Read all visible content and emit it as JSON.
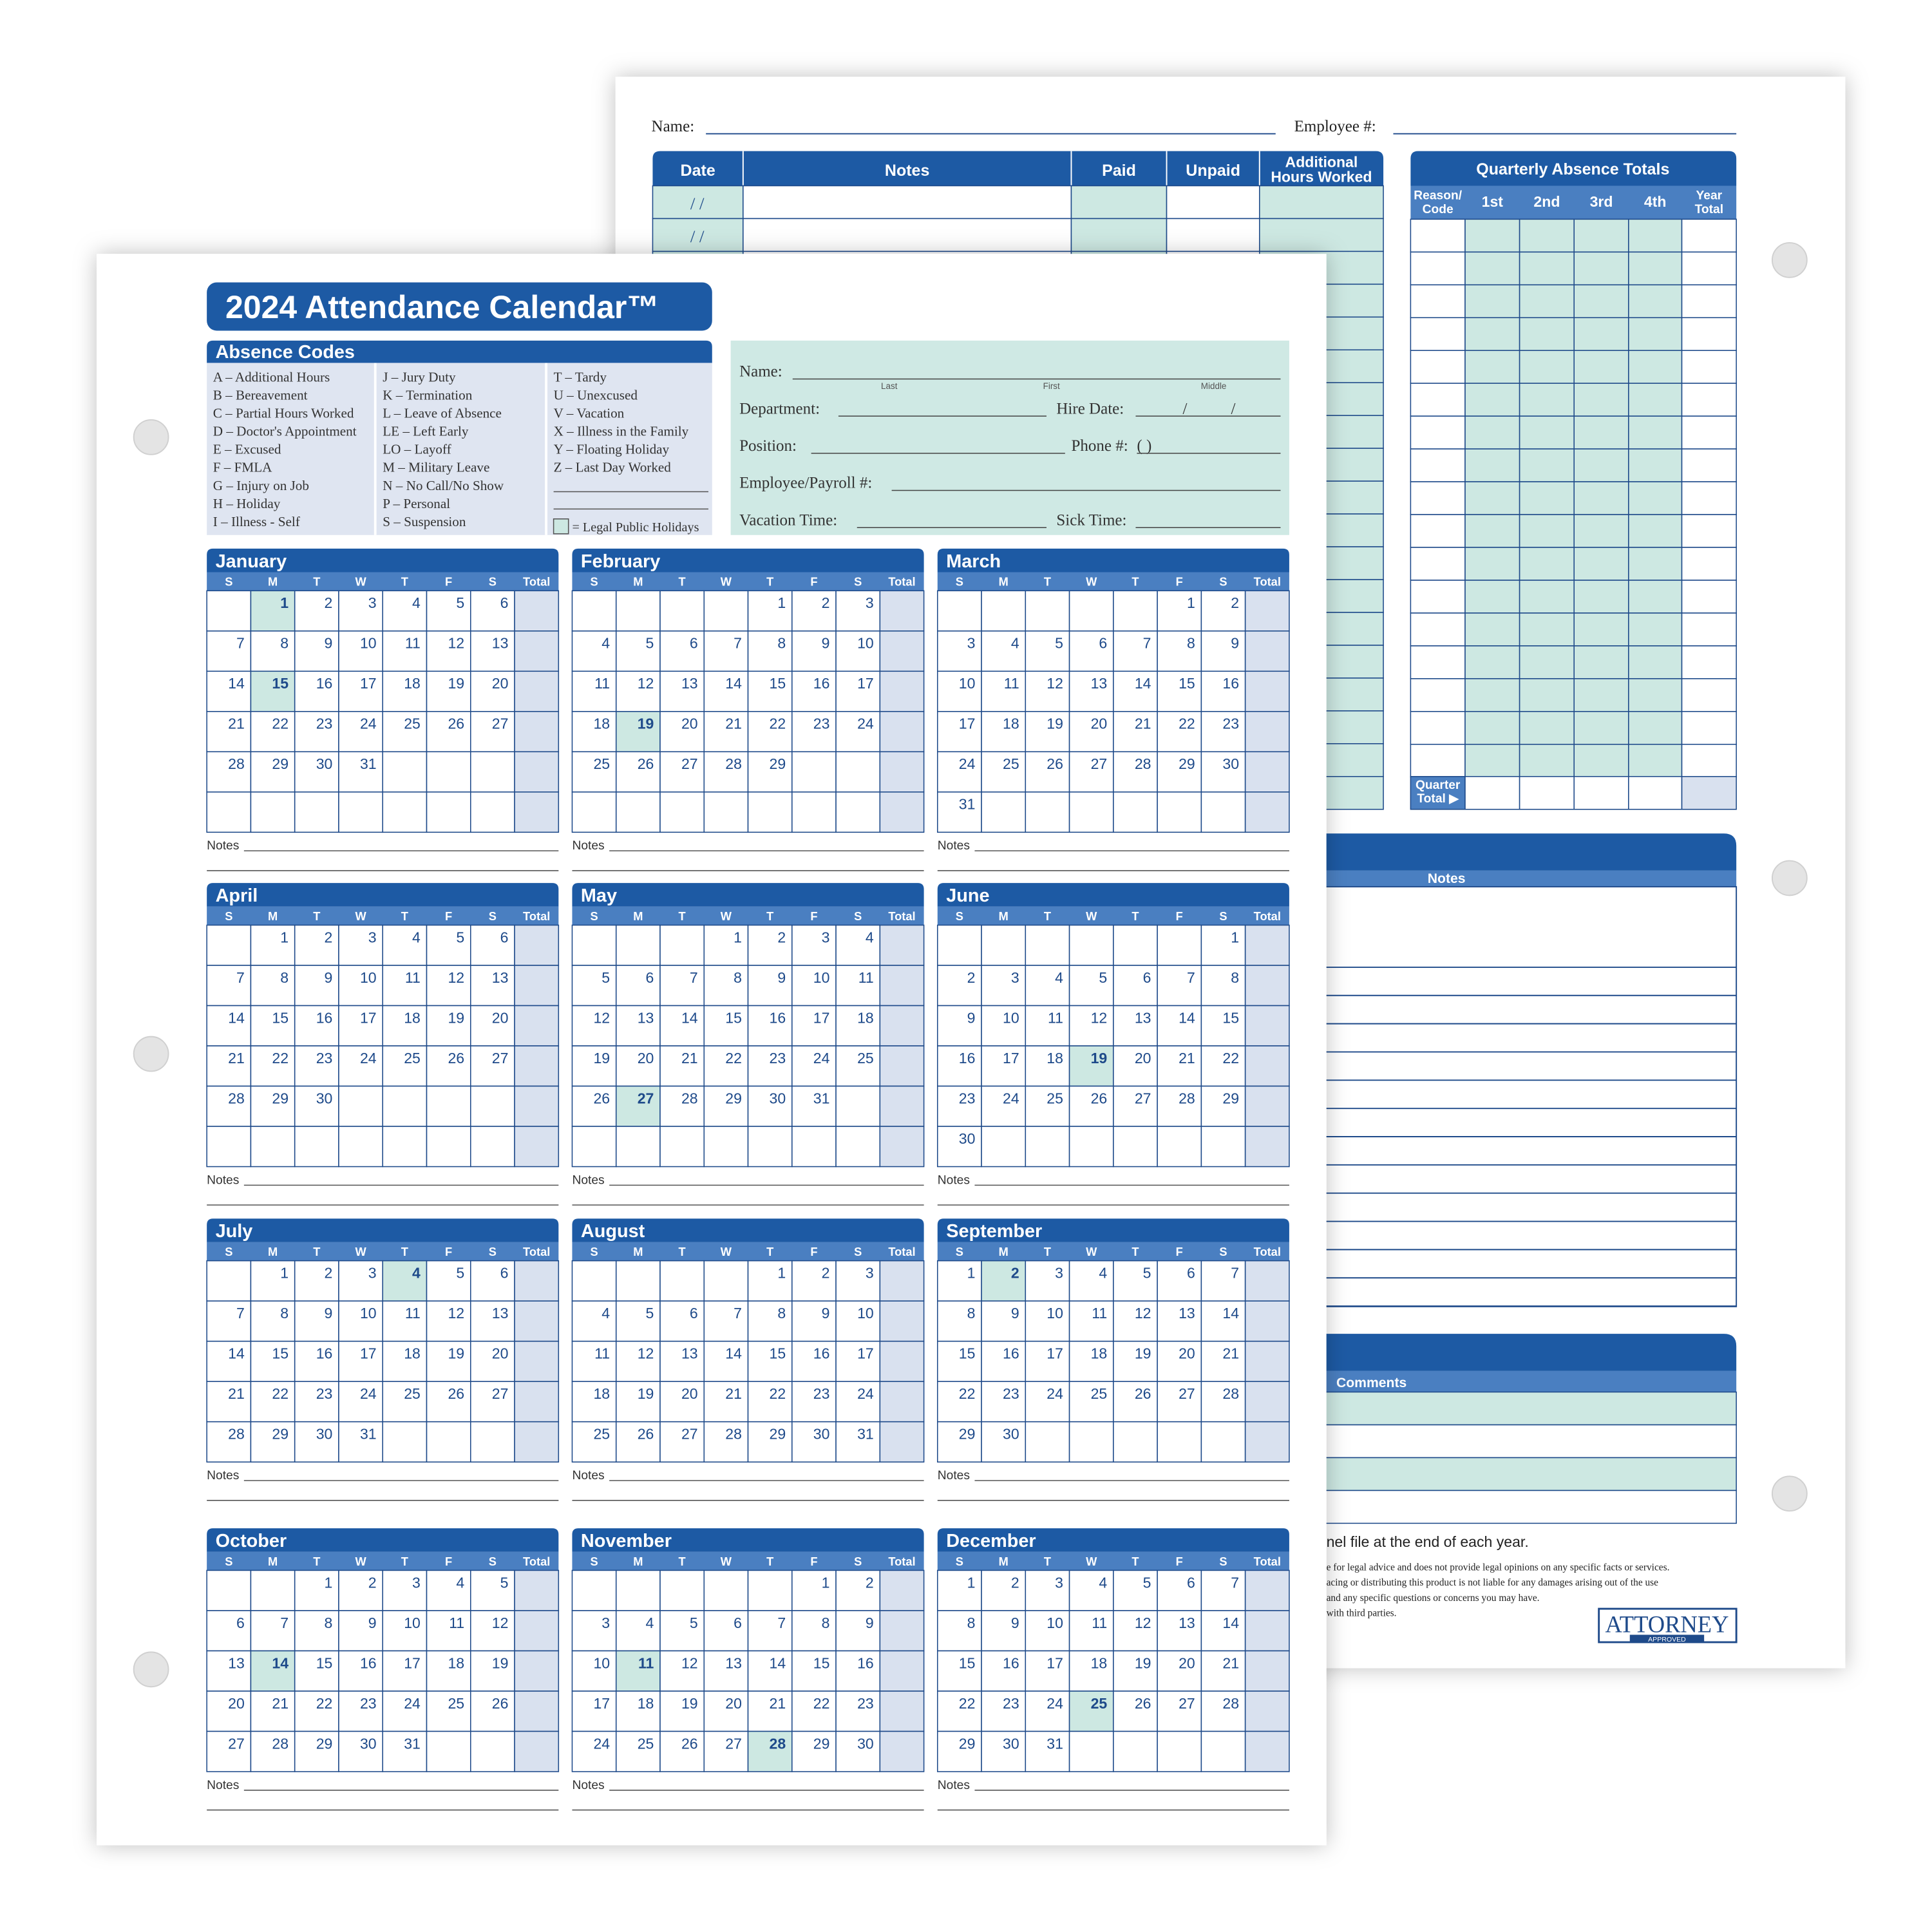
{
  "back_page": {
    "name_label": "Name:",
    "employee_label": "Employee #:",
    "log_columns": [
      "Date",
      "Notes",
      "Paid",
      "Unpaid",
      [
        "Additional",
        "Hours Worked"
      ]
    ],
    "date_placeholder": "/    /",
    "quarterly": {
      "title": "Quarterly Absence Totals",
      "columns": [
        [
          "Reason/",
          "Code"
        ],
        "1st",
        "2nd",
        "3rd",
        "4th",
        [
          "Year",
          "Total"
        ]
      ],
      "quarter_total": [
        "Quarter",
        "Total ▶"
      ]
    },
    "notes_title": "Notes",
    "comments_title": "Comments",
    "footer": "nel file at the end of each year.",
    "legal": [
      "e for legal advice and does not provide legal opinions on any specific facts or services.",
      "acing or distributing this product is not liable for any damages arising out of the use",
      "and any specific questions or concerns you may have.",
      "with third parties."
    ],
    "logo": {
      "main": "ATTORNEY",
      "sub": "APPROVED"
    }
  },
  "front_page": {
    "title": "2024 Attendance Calendar™",
    "absence_codes": {
      "title": "Absence Codes",
      "columns": [
        [
          "A – Additional Hours",
          "B – Bereavement",
          "C – Partial Hours Worked",
          "D – Doctor's Appointment",
          "E – Excused",
          "F – FMLA",
          "G – Injury on Job",
          "H – Holiday",
          "I – Illness - Self"
        ],
        [
          "J – Jury Duty",
          "K – Termination",
          "L – Leave of Absence",
          "LE – Left Early",
          "LO – Layoff",
          "M – Military Leave",
          "N – No Call/No Show",
          "P – Personal",
          "S – Suspension"
        ],
        [
          "T – Tardy",
          "U – Unexcused",
          "V – Vacation",
          "X – Illness in the Family",
          "Y – Floating Holiday",
          "Z – Last Day Worked"
        ]
      ],
      "holiday_legend": "= Legal Public Holidays"
    },
    "form": {
      "name": "Name:",
      "name_parts": [
        "Last",
        "First",
        "Middle"
      ],
      "department": "Department:",
      "hire_date": "Hire Date:",
      "date_separator": "/",
      "position": "Position:",
      "phone": "Phone #:",
      "phone_parens": "(        )",
      "payroll": "Employee/Payroll #:",
      "vacation": "Vacation Time:",
      "sick": "Sick Time:"
    },
    "weekday_headers": [
      "S",
      "M",
      "T",
      "W",
      "T",
      "F",
      "S",
      "Total"
    ],
    "notes_label": "Notes",
    "months": [
      {
        "name": "January",
        "holidays": [
          1,
          15
        ],
        "weeks": [
          [
            null,
            1,
            2,
            3,
            4,
            5,
            6
          ],
          [
            7,
            8,
            9,
            10,
            11,
            12,
            13
          ],
          [
            14,
            15,
            16,
            17,
            18,
            19,
            20
          ],
          [
            21,
            22,
            23,
            24,
            25,
            26,
            27
          ],
          [
            28,
            29,
            30,
            31
          ]
        ]
      },
      {
        "name": "February",
        "holidays": [
          19
        ],
        "weeks": [
          [
            null,
            null,
            null,
            null,
            1,
            2,
            3
          ],
          [
            4,
            5,
            6,
            7,
            8,
            9,
            10
          ],
          [
            11,
            12,
            13,
            14,
            15,
            16,
            17
          ],
          [
            18,
            19,
            20,
            21,
            22,
            23,
            24
          ],
          [
            25,
            26,
            27,
            28,
            29
          ]
        ]
      },
      {
        "name": "March",
        "holidays": [],
        "weeks": [
          [
            null,
            null,
            null,
            null,
            null,
            1,
            2
          ],
          [
            3,
            4,
            5,
            6,
            7,
            8,
            9
          ],
          [
            10,
            11,
            12,
            13,
            14,
            15,
            16
          ],
          [
            17,
            18,
            19,
            20,
            21,
            22,
            23
          ],
          [
            24,
            25,
            26,
            27,
            28,
            29,
            30
          ],
          [
            31
          ]
        ]
      },
      {
        "name": "April",
        "holidays": [],
        "weeks": [
          [
            null,
            1,
            2,
            3,
            4,
            5,
            6
          ],
          [
            7,
            8,
            9,
            10,
            11,
            12,
            13
          ],
          [
            14,
            15,
            16,
            17,
            18,
            19,
            20
          ],
          [
            21,
            22,
            23,
            24,
            25,
            26,
            27
          ],
          [
            28,
            29,
            30
          ]
        ]
      },
      {
        "name": "May",
        "holidays": [
          27
        ],
        "weeks": [
          [
            null,
            null,
            null,
            1,
            2,
            3,
            4
          ],
          [
            5,
            6,
            7,
            8,
            9,
            10,
            11
          ],
          [
            12,
            13,
            14,
            15,
            16,
            17,
            18
          ],
          [
            19,
            20,
            21,
            22,
            23,
            24,
            25
          ],
          [
            26,
            27,
            28,
            29,
            30,
            31
          ]
        ]
      },
      {
        "name": "June",
        "holidays": [
          19
        ],
        "weeks": [
          [
            null,
            null,
            null,
            null,
            null,
            null,
            1
          ],
          [
            2,
            3,
            4,
            5,
            6,
            7,
            8
          ],
          [
            9,
            10,
            11,
            12,
            13,
            14,
            15
          ],
          [
            16,
            17,
            18,
            19,
            20,
            21,
            22
          ],
          [
            23,
            24,
            25,
            26,
            27,
            28,
            29
          ],
          [
            30
          ]
        ]
      },
      {
        "name": "July",
        "holidays": [
          4
        ],
        "weeks": [
          [
            null,
            1,
            2,
            3,
            4,
            5,
            6
          ],
          [
            7,
            8,
            9,
            10,
            11,
            12,
            13
          ],
          [
            14,
            15,
            16,
            17,
            18,
            19,
            20
          ],
          [
            21,
            22,
            23,
            24,
            25,
            26,
            27
          ],
          [
            28,
            29,
            30,
            31
          ]
        ]
      },
      {
        "name": "August",
        "holidays": [],
        "weeks": [
          [
            null,
            null,
            null,
            null,
            1,
            2,
            3
          ],
          [
            4,
            5,
            6,
            7,
            8,
            9,
            10
          ],
          [
            11,
            12,
            13,
            14,
            15,
            16,
            17
          ],
          [
            18,
            19,
            20,
            21,
            22,
            23,
            24
          ],
          [
            25,
            26,
            27,
            28,
            29,
            30,
            31
          ]
        ]
      },
      {
        "name": "September",
        "holidays": [
          2
        ],
        "weeks": [
          [
            1,
            2,
            3,
            4,
            5,
            6,
            7
          ],
          [
            8,
            9,
            10,
            11,
            12,
            13,
            14
          ],
          [
            15,
            16,
            17,
            18,
            19,
            20,
            21
          ],
          [
            22,
            23,
            24,
            25,
            26,
            27,
            28
          ],
          [
            29,
            30
          ]
        ]
      },
      {
        "name": "October",
        "holidays": [
          14
        ],
        "weeks": [
          [
            null,
            null,
            1,
            2,
            3,
            4,
            5
          ],
          [
            6,
            7,
            8,
            9,
            10,
            11,
            12
          ],
          [
            13,
            14,
            15,
            16,
            17,
            18,
            19
          ],
          [
            20,
            21,
            22,
            23,
            24,
            25,
            26
          ],
          [
            27,
            28,
            29,
            30,
            31
          ]
        ]
      },
      {
        "name": "November",
        "holidays": [
          11,
          28
        ],
        "weeks": [
          [
            null,
            null,
            null,
            null,
            null,
            1,
            2
          ],
          [
            3,
            4,
            5,
            6,
            7,
            8,
            9
          ],
          [
            10,
            11,
            12,
            13,
            14,
            15,
            16
          ],
          [
            17,
            18,
            19,
            20,
            21,
            22,
            23
          ],
          [
            24,
            25,
            26,
            27,
            28,
            29,
            30
          ]
        ]
      },
      {
        "name": "December",
        "holidays": [
          25
        ],
        "weeks": [
          [
            1,
            2,
            3,
            4,
            5,
            6,
            7
          ],
          [
            8,
            9,
            10,
            11,
            12,
            13,
            14
          ],
          [
            15,
            16,
            17,
            18,
            19,
            20,
            21
          ],
          [
            22,
            23,
            24,
            25,
            26,
            27,
            28
          ],
          [
            29,
            30,
            31
          ]
        ]
      }
    ]
  }
}
